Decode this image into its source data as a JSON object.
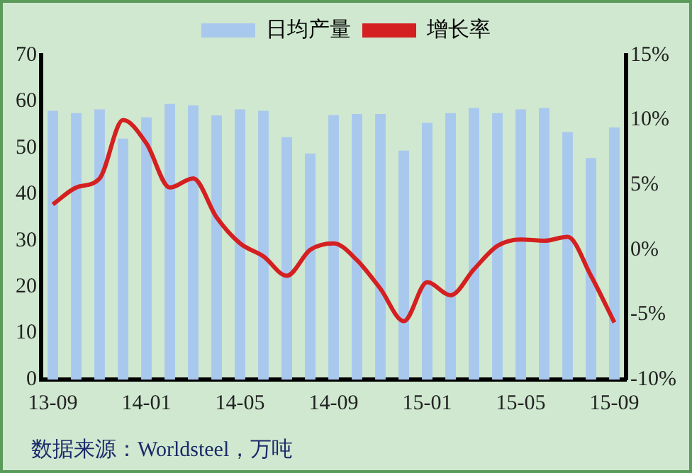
{
  "chart_data": {
    "type": "bar",
    "categories": [
      "13-09",
      null,
      null,
      null,
      "14-01",
      null,
      null,
      null,
      "14-05",
      null,
      null,
      null,
      "14-09",
      null,
      null,
      null,
      "15-01",
      null,
      null,
      null,
      "15-05",
      null,
      null,
      null,
      "15-09"
    ],
    "series": [
      {
        "name": "日均产量",
        "color": "#a9c8ee",
        "values": [
          58.0,
          57.5,
          58.3,
          52.0,
          56.6,
          59.5,
          59.2,
          57.0,
          58.3,
          58.0,
          52.3,
          48.8,
          57.1,
          57.3,
          57.3,
          49.4,
          55.4,
          57.5,
          58.6,
          57.5,
          58.3,
          58.6,
          53.4,
          47.8,
          54.4
        ]
      },
      {
        "name": "增长率",
        "type": "line",
        "axis": "y2",
        "color": "#d42020",
        "values": [
          3.5,
          4.8,
          5.5,
          10,
          8.2,
          4.8,
          5.5,
          2.5,
          0.5,
          -0.5,
          -2.0,
          0.0,
          0.5,
          -0.8,
          -3,
          -5.5,
          -2.5,
          -3.5,
          -1.5,
          0.3,
          0.8,
          0.7,
          1,
          -2,
          -5.6
        ]
      }
    ],
    "ylim": [
      0,
      70
    ],
    "yticks": [
      0,
      10,
      20,
      30,
      40,
      50,
      60,
      70
    ],
    "y2lim": [
      -10,
      15
    ],
    "y2ticks": [
      {
        "value": -10,
        "label": "-10%"
      },
      {
        "value": -5,
        "label": "-5%"
      },
      {
        "value": 0,
        "label": "0%"
      },
      {
        "value": 5,
        "label": "5%"
      },
      {
        "value": 10,
        "label": "10%"
      },
      {
        "value": 15,
        "label": "15%"
      }
    ],
    "grid": false,
    "legend": "top",
    "marker": "none",
    "line_style": "solid",
    "annotations": [
      "数据来源：Worldsteel，万吨"
    ]
  }
}
